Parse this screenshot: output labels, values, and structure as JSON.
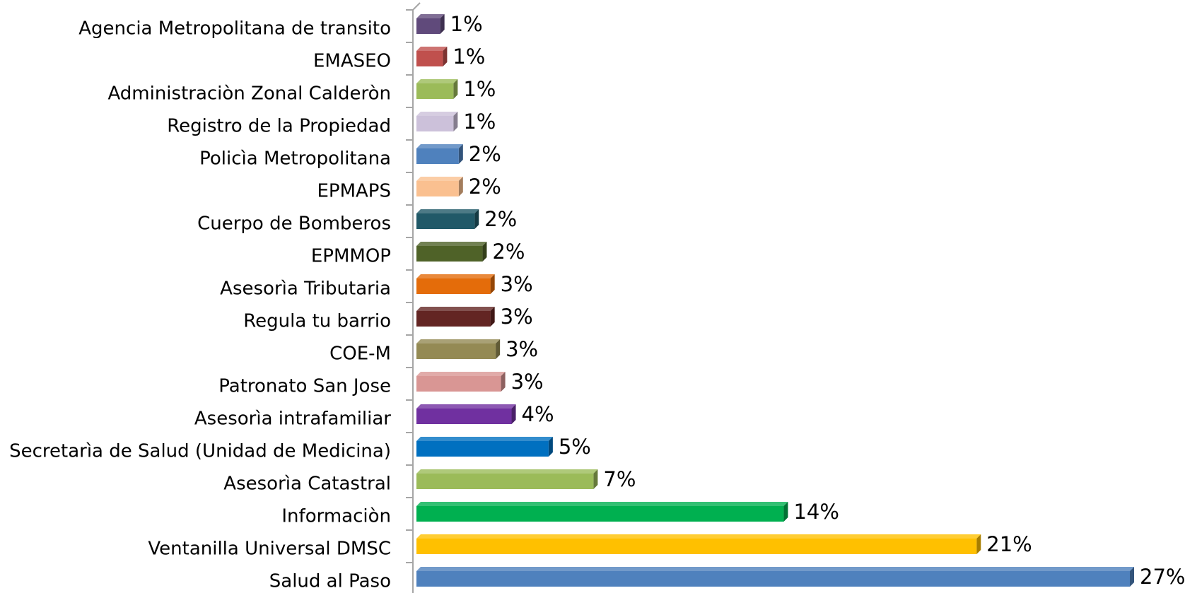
{
  "chart_data": {
    "type": "hbar",
    "categories": [
      "Agencia Metropolitana de transito",
      "EMASEO",
      "Administraciòn Zonal Calderòn",
      "Registro de la Propiedad",
      "Policìa Metropolitana",
      "EPMAPS",
      "Cuerpo de Bomberos",
      "EPMMOP",
      "Asesorìa Tributaria",
      "Regula tu barrio",
      "COE-M",
      "Patronato San Jose",
      "Asesorìa intrafamiliar",
      "Secretarìa de Salud (Unidad de Medicina)",
      "Asesorìa Catastral",
      "Informaciòn",
      "Ventanilla Universal DMSC",
      "Salud al Paso"
    ],
    "values": [
      0.9,
      1.0,
      1.4,
      1.4,
      1.6,
      1.6,
      2.2,
      2.5,
      2.8,
      2.8,
      3.0,
      3.2,
      3.6,
      5.0,
      6.7,
      13.9,
      21.2,
      27
    ],
    "value_labels": [
      "1%",
      "1%",
      "1%",
      "1%",
      "2%",
      "2%",
      "2%",
      "2%",
      "3%",
      "3%",
      "3%",
      "3%",
      "4%",
      "5%",
      "7%",
      "14%",
      "21%",
      "27%"
    ],
    "colors": [
      "#604a7b",
      "#c0504d",
      "#9bbb59",
      "#ccc1da",
      "#4f81bd",
      "#fac090",
      "#215968",
      "#4f6228",
      "#e46c0a",
      "#632523",
      "#948a54",
      "#d99694",
      "#7030a0",
      "#0070c0",
      "#9bbb59",
      "#00b050",
      "#ffc000",
      "#4f81bd"
    ]
  }
}
